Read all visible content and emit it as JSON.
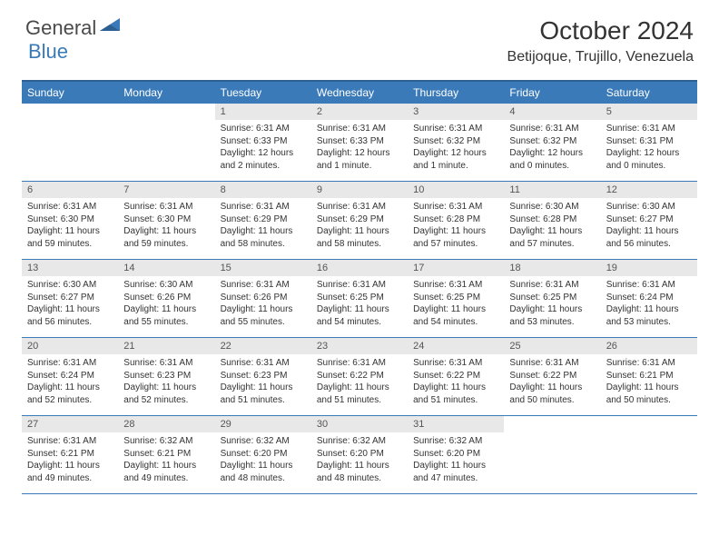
{
  "logo": {
    "general": "General",
    "blue": "Blue"
  },
  "title": "October 2024",
  "location": "Betijoque, Trujillo, Venezuela",
  "colors": {
    "header_bg": "#3a7ab8",
    "header_border": "#2e5f91",
    "daynum_bg": "#e8e8e8",
    "text": "#333333",
    "logo_blue": "#3a7ab8"
  },
  "weekdays": [
    "Sunday",
    "Monday",
    "Tuesday",
    "Wednesday",
    "Thursday",
    "Friday",
    "Saturday"
  ],
  "weeks": [
    [
      null,
      null,
      {
        "n": "1",
        "sr": "6:31 AM",
        "ss": "6:33 PM",
        "dl": "12 hours and 2 minutes."
      },
      {
        "n": "2",
        "sr": "6:31 AM",
        "ss": "6:33 PM",
        "dl": "12 hours and 1 minute."
      },
      {
        "n": "3",
        "sr": "6:31 AM",
        "ss": "6:32 PM",
        "dl": "12 hours and 1 minute."
      },
      {
        "n": "4",
        "sr": "6:31 AM",
        "ss": "6:32 PM",
        "dl": "12 hours and 0 minutes."
      },
      {
        "n": "5",
        "sr": "6:31 AM",
        "ss": "6:31 PM",
        "dl": "12 hours and 0 minutes."
      }
    ],
    [
      {
        "n": "6",
        "sr": "6:31 AM",
        "ss": "6:30 PM",
        "dl": "11 hours and 59 minutes."
      },
      {
        "n": "7",
        "sr": "6:31 AM",
        "ss": "6:30 PM",
        "dl": "11 hours and 59 minutes."
      },
      {
        "n": "8",
        "sr": "6:31 AM",
        "ss": "6:29 PM",
        "dl": "11 hours and 58 minutes."
      },
      {
        "n": "9",
        "sr": "6:31 AM",
        "ss": "6:29 PM",
        "dl": "11 hours and 58 minutes."
      },
      {
        "n": "10",
        "sr": "6:31 AM",
        "ss": "6:28 PM",
        "dl": "11 hours and 57 minutes."
      },
      {
        "n": "11",
        "sr": "6:30 AM",
        "ss": "6:28 PM",
        "dl": "11 hours and 57 minutes."
      },
      {
        "n": "12",
        "sr": "6:30 AM",
        "ss": "6:27 PM",
        "dl": "11 hours and 56 minutes."
      }
    ],
    [
      {
        "n": "13",
        "sr": "6:30 AM",
        "ss": "6:27 PM",
        "dl": "11 hours and 56 minutes."
      },
      {
        "n": "14",
        "sr": "6:30 AM",
        "ss": "6:26 PM",
        "dl": "11 hours and 55 minutes."
      },
      {
        "n": "15",
        "sr": "6:31 AM",
        "ss": "6:26 PM",
        "dl": "11 hours and 55 minutes."
      },
      {
        "n": "16",
        "sr": "6:31 AM",
        "ss": "6:25 PM",
        "dl": "11 hours and 54 minutes."
      },
      {
        "n": "17",
        "sr": "6:31 AM",
        "ss": "6:25 PM",
        "dl": "11 hours and 54 minutes."
      },
      {
        "n": "18",
        "sr": "6:31 AM",
        "ss": "6:25 PM",
        "dl": "11 hours and 53 minutes."
      },
      {
        "n": "19",
        "sr": "6:31 AM",
        "ss": "6:24 PM",
        "dl": "11 hours and 53 minutes."
      }
    ],
    [
      {
        "n": "20",
        "sr": "6:31 AM",
        "ss": "6:24 PM",
        "dl": "11 hours and 52 minutes."
      },
      {
        "n": "21",
        "sr": "6:31 AM",
        "ss": "6:23 PM",
        "dl": "11 hours and 52 minutes."
      },
      {
        "n": "22",
        "sr": "6:31 AM",
        "ss": "6:23 PM",
        "dl": "11 hours and 51 minutes."
      },
      {
        "n": "23",
        "sr": "6:31 AM",
        "ss": "6:22 PM",
        "dl": "11 hours and 51 minutes."
      },
      {
        "n": "24",
        "sr": "6:31 AM",
        "ss": "6:22 PM",
        "dl": "11 hours and 51 minutes."
      },
      {
        "n": "25",
        "sr": "6:31 AM",
        "ss": "6:22 PM",
        "dl": "11 hours and 50 minutes."
      },
      {
        "n": "26",
        "sr": "6:31 AM",
        "ss": "6:21 PM",
        "dl": "11 hours and 50 minutes."
      }
    ],
    [
      {
        "n": "27",
        "sr": "6:31 AM",
        "ss": "6:21 PM",
        "dl": "11 hours and 49 minutes."
      },
      {
        "n": "28",
        "sr": "6:32 AM",
        "ss": "6:21 PM",
        "dl": "11 hours and 49 minutes."
      },
      {
        "n": "29",
        "sr": "6:32 AM",
        "ss": "6:20 PM",
        "dl": "11 hours and 48 minutes."
      },
      {
        "n": "30",
        "sr": "6:32 AM",
        "ss": "6:20 PM",
        "dl": "11 hours and 48 minutes."
      },
      {
        "n": "31",
        "sr": "6:32 AM",
        "ss": "6:20 PM",
        "dl": "11 hours and 47 minutes."
      },
      null,
      null
    ]
  ],
  "labels": {
    "sunrise": "Sunrise:",
    "sunset": "Sunset:",
    "daylight": "Daylight:"
  }
}
